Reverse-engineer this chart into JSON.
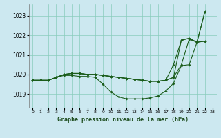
{
  "title": "Graphe pression niveau de la mer (hPa)",
  "background_color": "#cce8f0",
  "grid_color": "#88ccbb",
  "line_color": "#1a5c1a",
  "x_ticks": [
    0,
    1,
    2,
    3,
    4,
    5,
    6,
    7,
    8,
    9,
    10,
    11,
    12,
    13,
    14,
    15,
    16,
    17,
    18,
    19,
    20,
    21,
    22,
    23
  ],
  "y_ticks": [
    1019,
    1020,
    1021,
    1022,
    1023
  ],
  "ylim": [
    1018.3,
    1023.6
  ],
  "xlim": [
    -0.5,
    23.5
  ],
  "lines": [
    [
      1019.7,
      1019.7,
      1019.7,
      1019.85,
      1020.0,
      1020.05,
      1020.05,
      1020.0,
      1020.0,
      1019.95,
      1019.9,
      1019.85,
      1019.8,
      1019.75,
      1019.7,
      1019.65,
      1019.65,
      1019.7,
      1019.85,
      1020.5,
      1021.8,
      1021.65,
      1021.7
    ],
    [
      1019.7,
      1019.7,
      1019.7,
      1019.85,
      1020.0,
      1020.05,
      1020.05,
      1020.0,
      1020.0,
      1019.95,
      1019.9,
      1019.85,
      1019.8,
      1019.75,
      1019.7,
      1019.65,
      1019.65,
      1019.7,
      1019.85,
      1021.75,
      1021.85,
      1021.65,
      1021.7
    ],
    [
      1019.7,
      1019.7,
      1019.7,
      1019.85,
      1020.0,
      1020.05,
      1020.05,
      1020.0,
      1020.0,
      1019.95,
      1019.9,
      1019.85,
      1019.8,
      1019.75,
      1019.7,
      1019.65,
      1019.65,
      1019.7,
      1020.5,
      1021.75,
      1021.85,
      1021.65,
      1023.2
    ],
    [
      1019.7,
      1019.7,
      1019.7,
      1019.85,
      1019.95,
      1019.95,
      1019.9,
      1019.9,
      1019.85,
      1019.5,
      1019.1,
      1018.85,
      1018.75,
      1018.75,
      1018.75,
      1018.8,
      1018.9,
      1019.15,
      1019.55,
      1020.45,
      1020.5,
      1021.65,
      1023.2
    ]
  ]
}
